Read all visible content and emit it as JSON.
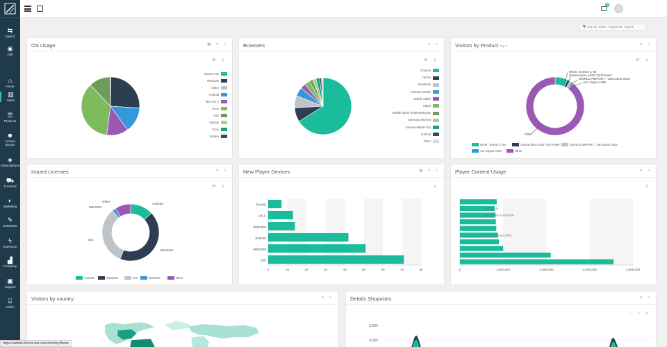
{
  "nav": [
    {
      "label": "Switch",
      "icon": "switch-icon"
    },
    {
      "label": "Defi",
      "icon": "globe-icon"
    },
    {
      "label": "Home",
      "icon": "home-icon"
    },
    {
      "label": "Sales",
      "icon": "bar-chart-icon"
    },
    {
      "label": "Products",
      "icon": "list-icon"
    },
    {
      "label": "Access groups",
      "icon": "users-icon"
    },
    {
      "label": "Subscriptions",
      "icon": "diamond-icon"
    },
    {
      "label": "Frontend",
      "icon": "cart-icon"
    },
    {
      "label": "Marketing",
      "icon": "contrast-icon"
    },
    {
      "label": "CMS/SMS",
      "icon": "edit-icon"
    },
    {
      "label": "Extension",
      "icon": "bolt-icon"
    },
    {
      "label": "Company",
      "icon": "factory-icon"
    },
    {
      "label": "Support",
      "icon": "briefcase-icon"
    },
    {
      "label": "Admin",
      "icon": "bank-icon"
    }
  ],
  "topbar": {
    "mail_badge": "0"
  },
  "date_range": "July 30, 2023 - August 28, 2023",
  "panels": {
    "os_usage": "OS Usage",
    "browsers": "Browsers",
    "visitors_by_product": "Visitors by Product",
    "visitors_by_product_sub": "Top 5",
    "issued_licenses": "Issued Licenses",
    "new_player_devices": "New Player Devices",
    "player_content_usage": "Player Content Usage",
    "visitors_by_country": "Visitors by country",
    "details_shopvisits": "Details Shopvisits"
  },
  "colors": {
    "teal": "#1abc9c",
    "navy": "#2c3e50",
    "lightgray": "#bdc3c7",
    "blue": "#3498db",
    "purple": "#9b59b6",
    "green": "#7dbb5e",
    "sage": "#6e9a5e"
  },
  "chart_data": [
    {
      "id": "os_usage",
      "type": "pie",
      "labels": [
        "Chrome OS",
        "Windows",
        "Other",
        "Android",
        "Mac OS X",
        "Linux",
        "iOS",
        "Ubuntu",
        "Tizen",
        "Fedora"
      ],
      "colors": [
        "#1abc9c",
        "#2c3e50",
        "#bdc3c7",
        "#3498db",
        "#9b59b6",
        "#7dbb5e",
        "#6e9a5e",
        "#a8d08d",
        "#16a085",
        "#34495e"
      ],
      "values": [
        0.1,
        26,
        0.1,
        14,
        12,
        36,
        11.8,
        0.1,
        0.1,
        0.1
      ]
    },
    {
      "id": "browsers",
      "type": "pie",
      "labels": [
        "Chrome",
        "Firefox",
        "Facebook",
        "Chrome Mobile",
        "Mobile Safari",
        "Safari",
        "Mobile Safari UI/WKWebView",
        "Samsung Internet",
        "Chrome Mobile iOS",
        "Android",
        "Other"
      ],
      "colors": [
        "#1abc9c",
        "#2c3e50",
        "#bdc3c7",
        "#3498db",
        "#9b59b6",
        "#7dbb5e",
        "#6e9a5e",
        "#a8d08d",
        "#16a085",
        "#34495e",
        "#d5d8dc"
      ],
      "values": [
        66,
        8,
        7,
        5,
        3,
        3,
        2,
        2,
        2,
        1,
        1
      ]
    },
    {
      "id": "visitors_by_product",
      "type": "pie",
      "donut": true,
      "labels": [
        "WAM : Events C-48",
        "VivaAerobus A320 \"Girl Power\"",
        "WORLD AIRPORT : Vancouver 2023",
        "Aer Lingus A330",
        "Other"
      ],
      "colors": [
        "#1abc9c",
        "#2c3e50",
        "#bdc3c7",
        "#3498db",
        "#9b59b6"
      ],
      "values": [
        7,
        1.5,
        1,
        1,
        89.5
      ]
    },
    {
      "id": "issued_licenses",
      "type": "pie",
      "donut": true,
      "labels": [
        "Android",
        "Windows",
        "iOS",
        "MacOSX",
        "Other"
      ],
      "colors": [
        "#1abc9c",
        "#2c3e50",
        "#bdc3c7",
        "#3498db",
        "#9b59b6"
      ],
      "values": [
        13,
        43,
        33,
        2,
        9
      ]
    },
    {
      "id": "new_player_devices",
      "type": "bar",
      "orientation": "horizontal",
      "categories": [
        "FireOS",
        "OS X",
        "Unknown",
        "Android",
        "Windows",
        "iOS"
      ],
      "values": [
        7,
        13,
        14,
        42,
        51,
        71
      ],
      "xlim": [
        0,
        80
      ],
      "xticks": [
        0,
        10,
        20,
        30,
        40,
        50,
        60,
        70,
        80
      ]
    },
    {
      "id": "player_content_usage",
      "type": "bar",
      "orientation": "horizontal",
      "categories": [
        "",
        "Antis 2019",
        "podcastate & Phoenix",
        "",
        "",
        "CS : Chicago 2001",
        "",
        "",
        "",
        ""
      ],
      "values": [
        850000,
        800000,
        820000,
        830000,
        840000,
        880000,
        900000,
        1000000,
        2100000,
        3550000
      ],
      "xlim": [
        0,
        4000000
      ],
      "xticks": [
        "0",
        "1,000,000",
        "2,000,000",
        "3,000,000",
        "4,000,000"
      ]
    },
    {
      "id": "details_shopvisits",
      "type": "area",
      "yticks": [
        "6,000",
        "4,000"
      ]
    }
  ],
  "status_url": "https://admin.flickrocket.com/cms/myHome"
}
